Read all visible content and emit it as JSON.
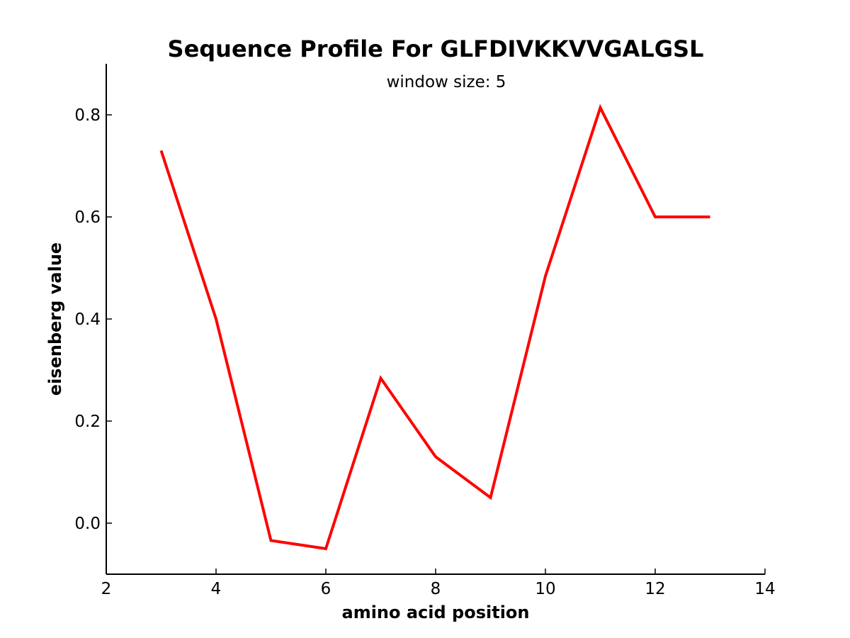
{
  "chart_data": {
    "type": "line",
    "title": "Sequence Profile For GLFDIVKKVVGALGSL",
    "subtitle": "window size: 5",
    "xlabel": "amino acid position",
    "ylabel": "eisenberg value",
    "xlim": [
      2,
      14
    ],
    "ylim": [
      -0.1,
      0.9
    ],
    "xticks": [
      "2",
      "4",
      "6",
      "8",
      "10",
      "12",
      "14"
    ],
    "yticks": [
      "0.0",
      "0.2",
      "0.4",
      "0.6",
      "0.8"
    ],
    "grid": false,
    "series": [
      {
        "color": "#ff0000",
        "x": [
          3,
          4,
          5,
          6,
          7,
          8,
          9,
          10,
          11,
          12,
          13
        ],
        "y": [
          0.73,
          0.4,
          -0.034,
          -0.05,
          0.284,
          0.13,
          0.05,
          0.484,
          0.814,
          0.6,
          0.6
        ]
      }
    ]
  }
}
